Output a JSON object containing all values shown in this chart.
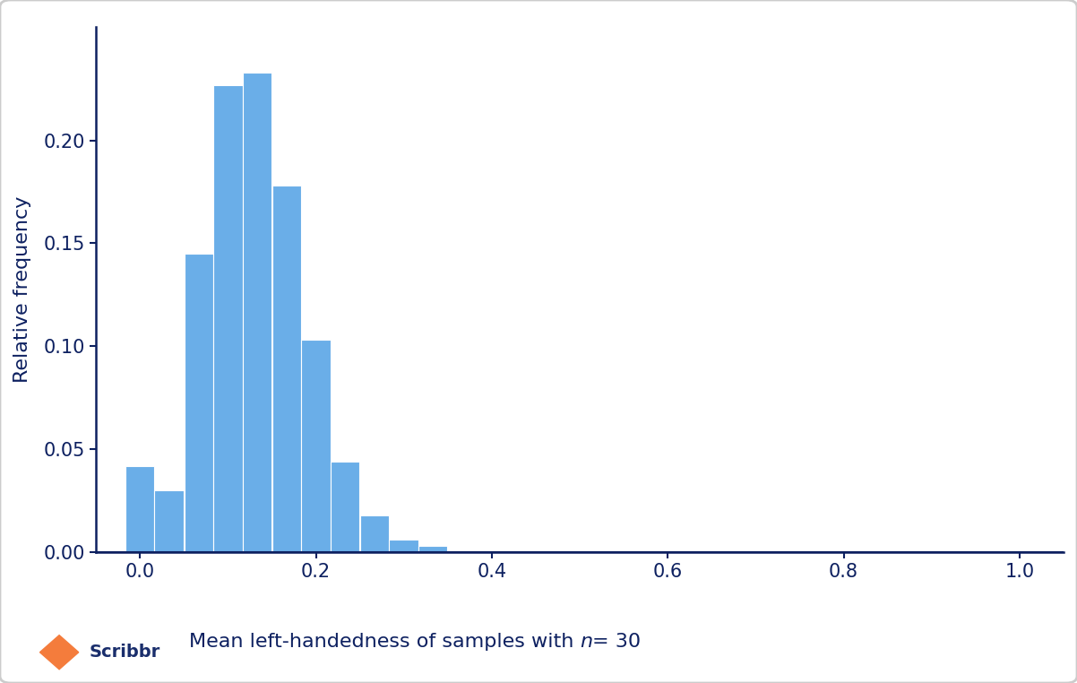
{
  "bar_heights": [
    0.042,
    0.03,
    0.145,
    0.227,
    0.233,
    0.178,
    0.103,
    0.044,
    0.018,
    0.006,
    0.003
  ],
  "bar_width": 0.033,
  "bar_color": "#6aaee8",
  "bar_edgecolor": "#ffffff",
  "bar_linewidth": 0.8,
  "xlim": [
    -0.05,
    1.05
  ],
  "ylim": [
    0,
    0.255
  ],
  "xticks": [
    0.0,
    0.2,
    0.4,
    0.6,
    0.8,
    1.0
  ],
  "yticks": [
    0.0,
    0.05,
    0.1,
    0.15,
    0.2
  ],
  "xlabel_regular": "Mean left-handedness of samples with ",
  "xlabel_italic": "n",
  "xlabel_value": "= 30",
  "ylabel": "Relative frequency",
  "axis_color": "#0d2060",
  "tick_color": "#0d2060",
  "label_color": "#0d2060",
  "background_color": "#ffffff",
  "spine_color": "#0d2060",
  "xlabel_fontsize": 16,
  "ylabel_fontsize": 16,
  "tick_fontsize": 15,
  "scribbr_color": "#1a2e6c",
  "scribbr_orange": "#f47c3c",
  "fig_width": 12.02,
  "fig_height": 7.62
}
